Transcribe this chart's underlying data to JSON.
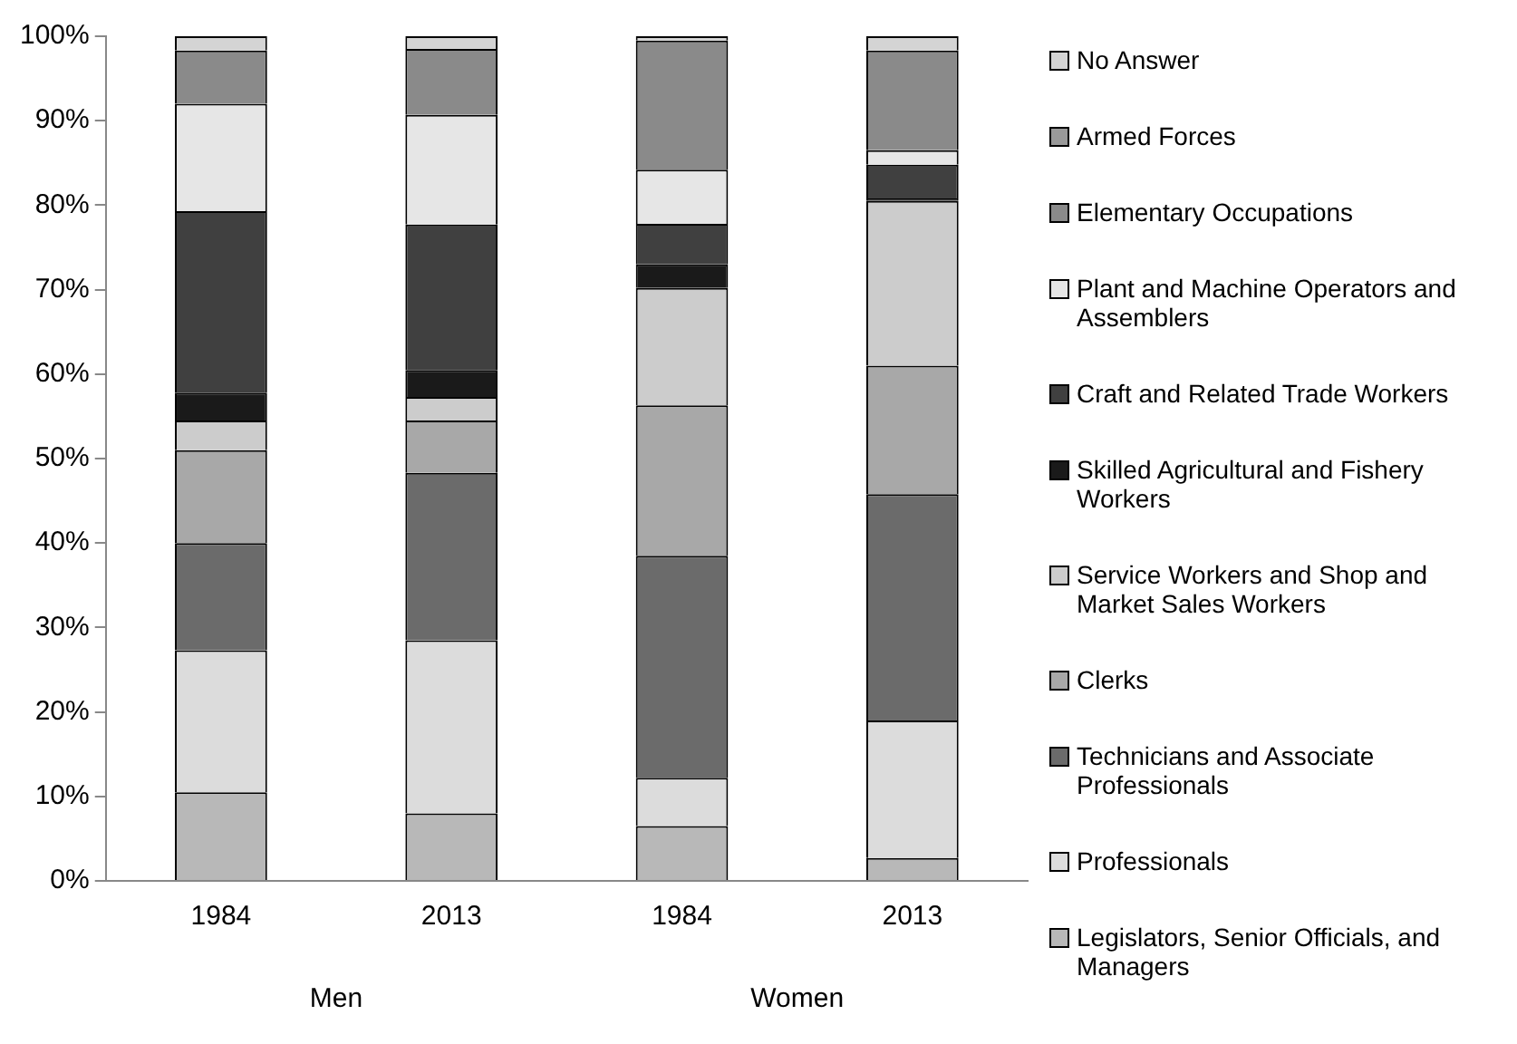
{
  "chart_data": {
    "type": "bar",
    "stacked": true,
    "categories": [
      "1984",
      "2013",
      "1984",
      "2013"
    ],
    "annotations": [
      "Men",
      "Women"
    ],
    "series": [
      {
        "name": "Legislators, Senior Officials, and Managers",
        "color": "#b8b8b8",
        "values": [
          10.5,
          8,
          6.5,
          2.7
        ]
      },
      {
        "name": "Professionals",
        "color": "#dcdcdc",
        "values": [
          16.8,
          20.5,
          5.7,
          16.3
        ]
      },
      {
        "name": "Technicians and Associate Professionals",
        "color": "#6b6b6b",
        "values": [
          12.7,
          19.8,
          26.3,
          26.8
        ]
      },
      {
        "name": "Clerks",
        "color": "#a8a8a8",
        "values": [
          11,
          6.2,
          17.8,
          15.2
        ]
      },
      {
        "name": "Service Workers and Shop and Market Sales Workers",
        "color": "#cccccc",
        "values": [
          3.5,
          2.8,
          13.9,
          19.5
        ]
      },
      {
        "name": "Skilled Agricultural and Fishery Workers",
        "color": "#1a1a1a",
        "values": [
          3.3,
          3.2,
          2.8,
          0.3
        ]
      },
      {
        "name": "Craft and Related Trade Workers",
        "color": "#404040",
        "values": [
          21.5,
          17.2,
          4.8,
          4
        ]
      },
      {
        "name": "Plant and Machine Operators and Assemblers",
        "color": "#e6e6e6",
        "values": [
          12.7,
          13,
          6.4,
          1.7
        ]
      },
      {
        "name": "Elementary Occupations",
        "color": "#8a8a8a",
        "values": [
          6.3,
          7.8,
          15.3,
          11.8
        ]
      },
      {
        "name": "Armed Forces",
        "color": "#999999",
        "values": [
          0,
          0,
          0,
          0
        ]
      },
      {
        "name": "No Answer",
        "color": "#d4d4d4",
        "values": [
          1.7,
          1.5,
          0.5,
          1.7
        ]
      }
    ],
    "ylim": [
      0,
      100
    ],
    "yticks": [
      {
        "value": 0,
        "label": "0%"
      },
      {
        "value": 10,
        "label": "10%"
      },
      {
        "value": 20,
        "label": "20%"
      },
      {
        "value": 30,
        "label": "30%"
      },
      {
        "value": 40,
        "label": "40%"
      },
      {
        "value": 50,
        "label": "50%"
      },
      {
        "value": 60,
        "label": "60%"
      },
      {
        "value": 70,
        "label": "70%"
      },
      {
        "value": 80,
        "label": "80%"
      },
      {
        "value": 90,
        "label": "90%"
      },
      {
        "value": 100,
        "label": "100%"
      }
    ],
    "grid": false,
    "legend": "right"
  }
}
